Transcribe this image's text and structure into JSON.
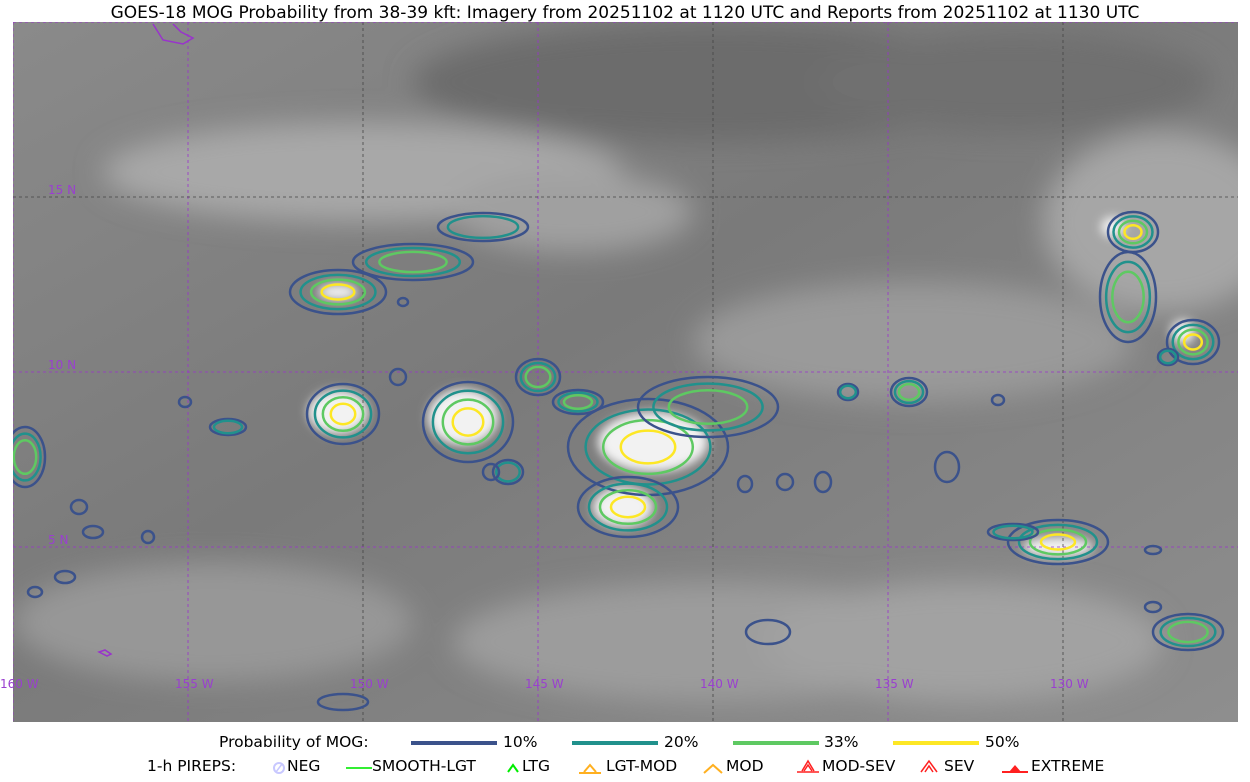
{
  "title": "GOES-18 MOG Probability from 38-39 kft: Imagery from 20251102 at 1120 UTC and Reports from 20251102 at 1130 UTC",
  "map": {
    "lon_labels": [
      "160 W",
      "155 W",
      "150 W",
      "145 W",
      "140 W",
      "135 W",
      "130 W"
    ],
    "lat_labels": [
      "15 N",
      "10 N",
      "5 N"
    ],
    "grid_color": "#9933cc",
    "coastline_color": "#9933cc"
  },
  "legend": {
    "mog_title": "Probability of MOG:",
    "mog_levels": [
      {
        "label": "10%",
        "color": "#3b528b"
      },
      {
        "label": "20%",
        "color": "#21918c"
      },
      {
        "label": "33%",
        "color": "#5ec962"
      },
      {
        "label": "50%",
        "color": "#fde725"
      }
    ],
    "pirep_title": "1-h PIREPS:",
    "pireps": [
      {
        "label": "NEG",
        "icon": "neg-circle-icon",
        "color": "#c8c8ff"
      },
      {
        "label": "SMOOTH-LGT",
        "icon": "line-icon",
        "color": "#33ee33"
      },
      {
        "label": "LTG",
        "icon": "caret-icon",
        "color": "#00ee00"
      },
      {
        "label": "LGT-MOD",
        "icon": "caret-bar-icon",
        "color": "#ffb020"
      },
      {
        "label": "MOD",
        "icon": "caret-icon",
        "color": "#ffb020"
      },
      {
        "label": "MOD-SEV",
        "icon": "double-caret-bar-icon",
        "color": "#ff2020"
      },
      {
        "label": "SEV",
        "icon": "double-caret-icon",
        "color": "#ff2020"
      },
      {
        "label": "EXTREME",
        "icon": "filled-triangle-icon",
        "color": "#ff2020"
      }
    ]
  }
}
